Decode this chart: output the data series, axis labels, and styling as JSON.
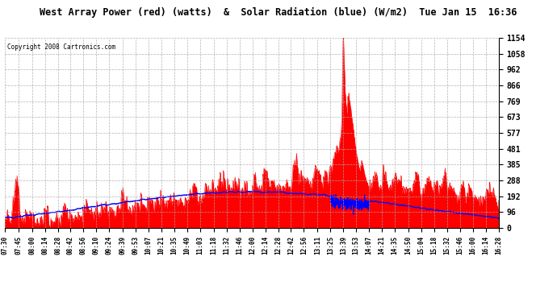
{
  "title": "West Array Power (red) (watts)  &  Solar Radiation (blue) (W/m2)  Tue Jan 15  16:36",
  "copyright": "Copyright 2008 Cartronics.com",
  "ymax": 1154.0,
  "ymin": 0.0,
  "yticks": [
    0.0,
    96.2,
    192.3,
    288.5,
    384.7,
    480.9,
    577.0,
    673.2,
    769.4,
    865.5,
    961.7,
    1057.9,
    1154.0
  ],
  "x_labels": [
    "07:30",
    "07:45",
    "08:00",
    "08:14",
    "08:28",
    "08:42",
    "08:56",
    "09:10",
    "09:24",
    "09:39",
    "09:53",
    "10:07",
    "10:21",
    "10:35",
    "10:49",
    "11:03",
    "11:18",
    "11:32",
    "11:46",
    "12:00",
    "12:14",
    "12:28",
    "12:42",
    "12:56",
    "13:11",
    "13:25",
    "13:39",
    "13:53",
    "14:07",
    "14:21",
    "14:35",
    "14:50",
    "15:04",
    "15:18",
    "15:32",
    "15:46",
    "16:00",
    "16:14",
    "16:28"
  ],
  "background_color": "#ffffff",
  "plot_bg": "#ffffff",
  "grid_color": "#aaaaaa",
  "red_color": "#ff0000",
  "blue_color": "#0000ff",
  "title_color": "#000000"
}
